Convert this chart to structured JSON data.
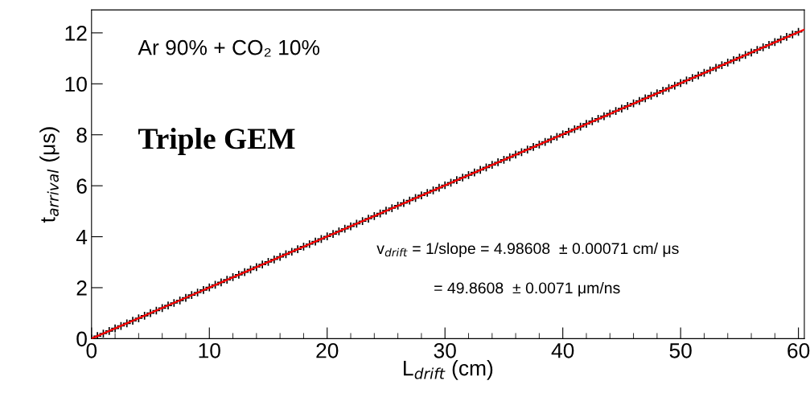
{
  "chart_data": {
    "type": "scatter",
    "xlabel": "L$_{drift}$ (cm)",
    "ylabel": "t$_{arrival}$ (μs)",
    "xlim": [
      0,
      60.5
    ],
    "ylim": [
      0,
      12.9
    ],
    "xticks": [
      0,
      10,
      20,
      30,
      40,
      50,
      60
    ],
    "yticks": [
      0,
      2,
      4,
      6,
      8,
      10,
      12
    ],
    "grid": false,
    "legend": false,
    "annotations": [
      "Ar 90% + CO₂ 10%",
      "Triple GEM",
      "v$_{drift}$ = 1/slope = 4.98608  ± 0.00071 cm/ μs",
      "= 49.8608  ± 0.0071 μm/ns"
    ],
    "series": [
      {
        "color": "#000000",
        "marker": "cross",
        "x": [
          0,
          0.5,
          1,
          1.5,
          2,
          2.5,
          3,
          3.5,
          4,
          4.5,
          5,
          5.5,
          6,
          6.5,
          7,
          7.5,
          8,
          8.5,
          9,
          9.5,
          10,
          10.5,
          11,
          11.5,
          12,
          12.5,
          13,
          13.5,
          14,
          14.5,
          15,
          15.5,
          16,
          16.5,
          17,
          17.5,
          18,
          18.5,
          19,
          19.5,
          20,
          20.5,
          21,
          21.5,
          22,
          22.5,
          23,
          23.5,
          24,
          24.5,
          25,
          25.5,
          26,
          26.5,
          27,
          27.5,
          28,
          28.5,
          29,
          29.5,
          30,
          30.5,
          31,
          31.5,
          32,
          32.5,
          33,
          33.5,
          34,
          34.5,
          35,
          35.5,
          36,
          36.5,
          37,
          37.5,
          38,
          38.5,
          39,
          39.5,
          40,
          40.5,
          41,
          41.5,
          42,
          42.5,
          43,
          43.5,
          44,
          44.5,
          45,
          45.5,
          46,
          46.5,
          47,
          47.5,
          48,
          48.5,
          49,
          49.5,
          50,
          50.5,
          51,
          51.5,
          52,
          52.5,
          53,
          53.5,
          54,
          54.5,
          55,
          55.5,
          56,
          56.5,
          57,
          57.5,
          58,
          58.5,
          59,
          59.5,
          60
        ],
        "values": [
          0,
          0.1,
          0.2,
          0.3,
          0.4,
          0.5,
          0.6,
          0.7,
          0.8,
          0.9,
          1.0,
          1.1,
          1.2,
          1.3,
          1.4,
          1.5,
          1.6,
          1.71,
          1.81,
          1.91,
          2.01,
          2.11,
          2.21,
          2.31,
          2.41,
          2.51,
          2.61,
          2.71,
          2.81,
          2.91,
          3.01,
          3.11,
          3.21,
          3.31,
          3.41,
          3.51,
          3.61,
          3.71,
          3.81,
          3.91,
          4.01,
          4.11,
          4.21,
          4.31,
          4.41,
          4.51,
          4.61,
          4.71,
          4.81,
          4.91,
          5.02,
          5.12,
          5.22,
          5.32,
          5.42,
          5.52,
          5.62,
          5.72,
          5.82,
          5.92,
          6.02,
          6.12,
          6.22,
          6.32,
          6.42,
          6.52,
          6.62,
          6.72,
          6.82,
          6.92,
          7.02,
          7.12,
          7.22,
          7.32,
          7.42,
          7.52,
          7.62,
          7.72,
          7.82,
          7.92,
          8.02,
          8.12,
          8.22,
          8.32,
          8.43,
          8.53,
          8.63,
          8.73,
          8.83,
          8.93,
          9.03,
          9.13,
          9.23,
          9.33,
          9.43,
          9.53,
          9.63,
          9.73,
          9.83,
          9.93,
          10.03,
          10.13,
          10.23,
          10.33,
          10.43,
          10.53,
          10.63,
          10.73,
          10.83,
          10.93,
          11.03,
          11.13,
          11.23,
          11.33,
          11.43,
          11.53,
          11.64,
          11.74,
          11.84,
          11.94,
          12.04
        ]
      },
      {
        "type": "line",
        "color": "#ff0000",
        "line_style": "solid",
        "x": [
          0,
          60.5
        ],
        "values": [
          0,
          12.13
        ]
      }
    ]
  }
}
